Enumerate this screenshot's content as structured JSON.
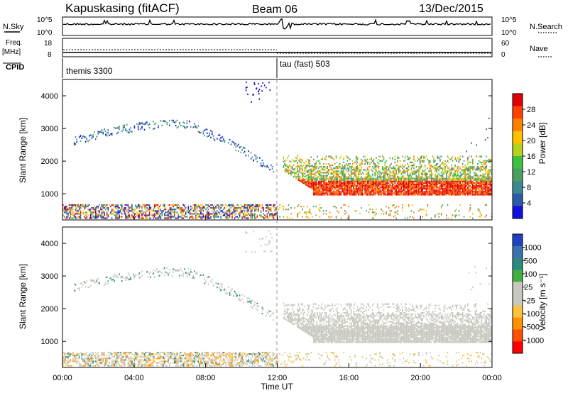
{
  "header": {
    "station": "Kapuskasing (fitACF)",
    "beam": "Beam 06",
    "date": "13/Dec/2015"
  },
  "top_panels": {
    "nsky_label": "N.Sky",
    "nsky_ticks": [
      "10^5",
      "10^0"
    ],
    "nsearch_label": "N.Search",
    "nsearch_ticks": [
      "10^5",
      "10^0"
    ],
    "freq_label_1": "Freq.",
    "freq_label_2": "[MHz]",
    "freq_ticks": [
      "18",
      "8"
    ],
    "nave_label": "Nave",
    "nave_ticks": [
      "60",
      "0"
    ],
    "cpid_label": "CPID",
    "cpid_1": "themis 3300",
    "cpid_2": "tau (fast) 503"
  },
  "chart_data": [
    {
      "type": "heatmap",
      "name": "power",
      "ylabel": "Slant Range [km]",
      "yticks": [
        1000,
        2000,
        3000,
        4000
      ],
      "ylim": [
        200,
        4500
      ],
      "xlim_hours": [
        0,
        24
      ],
      "colorbar_label": "Power [dB]",
      "colorbar_ticks": [
        "28",
        "24",
        "20",
        "16",
        "12",
        "8",
        "4"
      ],
      "colorbar_colors": [
        "#e00000",
        "#ff4000",
        "#ff8000",
        "#ffc000",
        "#b8d020",
        "#40c040",
        "#4aa060",
        "#3a8a90",
        "#2a5aa8",
        "#1010e0"
      ]
    },
    {
      "type": "heatmap",
      "name": "velocity",
      "ylabel": "Slant Range [km]",
      "yticks": [
        1000,
        2000,
        3000,
        4000
      ],
      "ylim": [
        200,
        4500
      ],
      "xlim_hours": [
        0,
        24
      ],
      "xlabel": "Time UT",
      "xticks": [
        "00:00",
        "04:00",
        "08:00",
        "12:00",
        "16:00",
        "20:00",
        "00:00"
      ],
      "colorbar_label": "Velocity [m s⁻¹]",
      "colorbar_ticks": [
        "1000",
        "500",
        "100",
        "25",
        "-25",
        "-100",
        "-500",
        "-1000"
      ],
      "colorbar_colors": [
        "#2040c0",
        "#3a70b0",
        "#2a8a80",
        "#40b040",
        "#c8c8c0",
        "#c8c8c0",
        "#ffc040",
        "#ff9000",
        "#ff5000",
        "#ff0000"
      ]
    }
  ]
}
